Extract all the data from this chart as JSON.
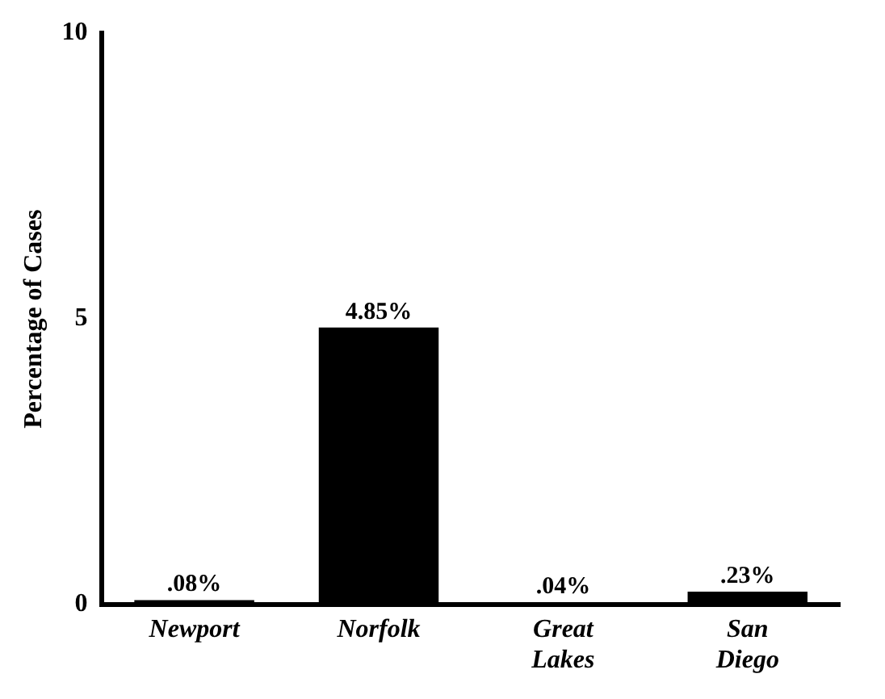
{
  "chart_data": {
    "type": "bar",
    "ylabel": "Percentage of Cases",
    "categories": [
      "Newport",
      "Norfolk",
      "Great Lakes",
      "San Diego"
    ],
    "values": [
      0.08,
      4.85,
      0.04,
      0.23
    ],
    "value_labels": [
      ".08%",
      "4.85%",
      ".04%",
      ".23%"
    ],
    "color": "#000000",
    "ylim": [
      0,
      10
    ],
    "yticks": [
      0,
      5,
      10
    ],
    "grid": false,
    "legend": false
  }
}
